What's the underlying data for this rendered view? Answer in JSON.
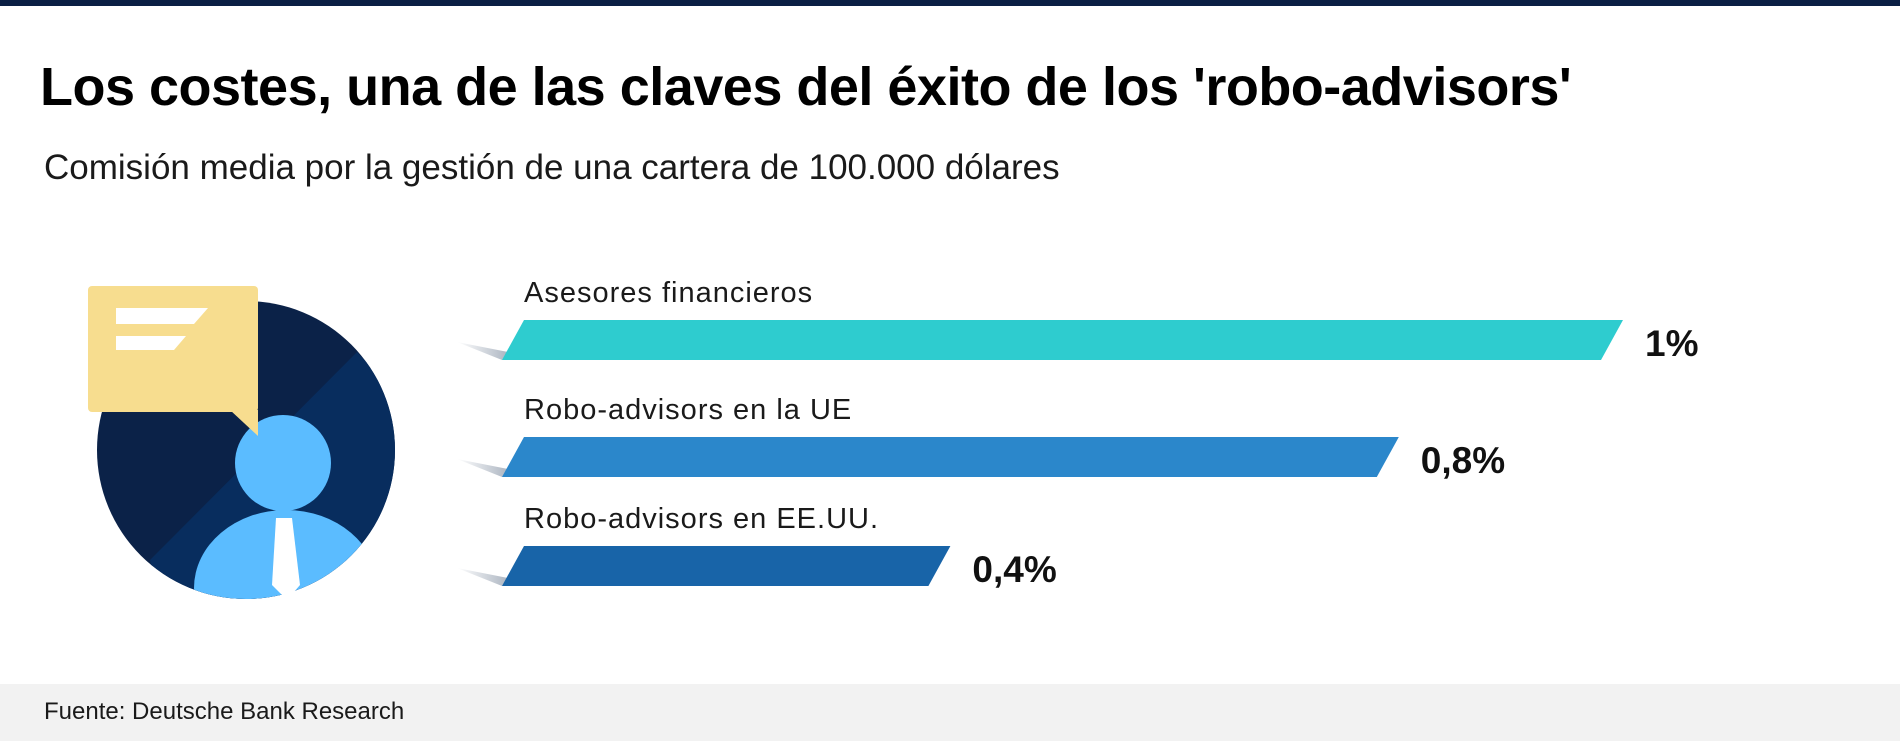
{
  "header": {
    "title": "Los costes, una de las claves del éxito de los 'robo-advisors'",
    "subtitle": "Comisión media por la gestión de una cartera de 100.000 dólares"
  },
  "footer": {
    "source": "Fuente: Deutsche Bank Research"
  },
  "illustration": {
    "icon": "financial-advisor-icon",
    "colors": {
      "circle_dark": "#0b2248",
      "circle_mid": "#082d5e",
      "person": "#5bbcff",
      "bubble": "#f7dd8f"
    }
  },
  "chart_data": {
    "type": "bar",
    "orientation": "horizontal",
    "title": "Los costes, una de las claves del éxito de los 'robo-advisors'",
    "subtitle": "Comisión media por la gestión de una cartera de 100.000 dólares",
    "categories": [
      "Asesores financieros",
      "Robo-advisors en la UE",
      "Robo-advisors en EE.UU."
    ],
    "values": [
      1,
      0.8,
      0.4
    ],
    "value_labels": [
      "1%",
      "0,8%",
      "0,4%"
    ],
    "colors": [
      "#2ecccf",
      "#2b87cb",
      "#1864a8"
    ],
    "xlim": [
      0,
      1
    ],
    "grid": false,
    "legend": "none"
  }
}
